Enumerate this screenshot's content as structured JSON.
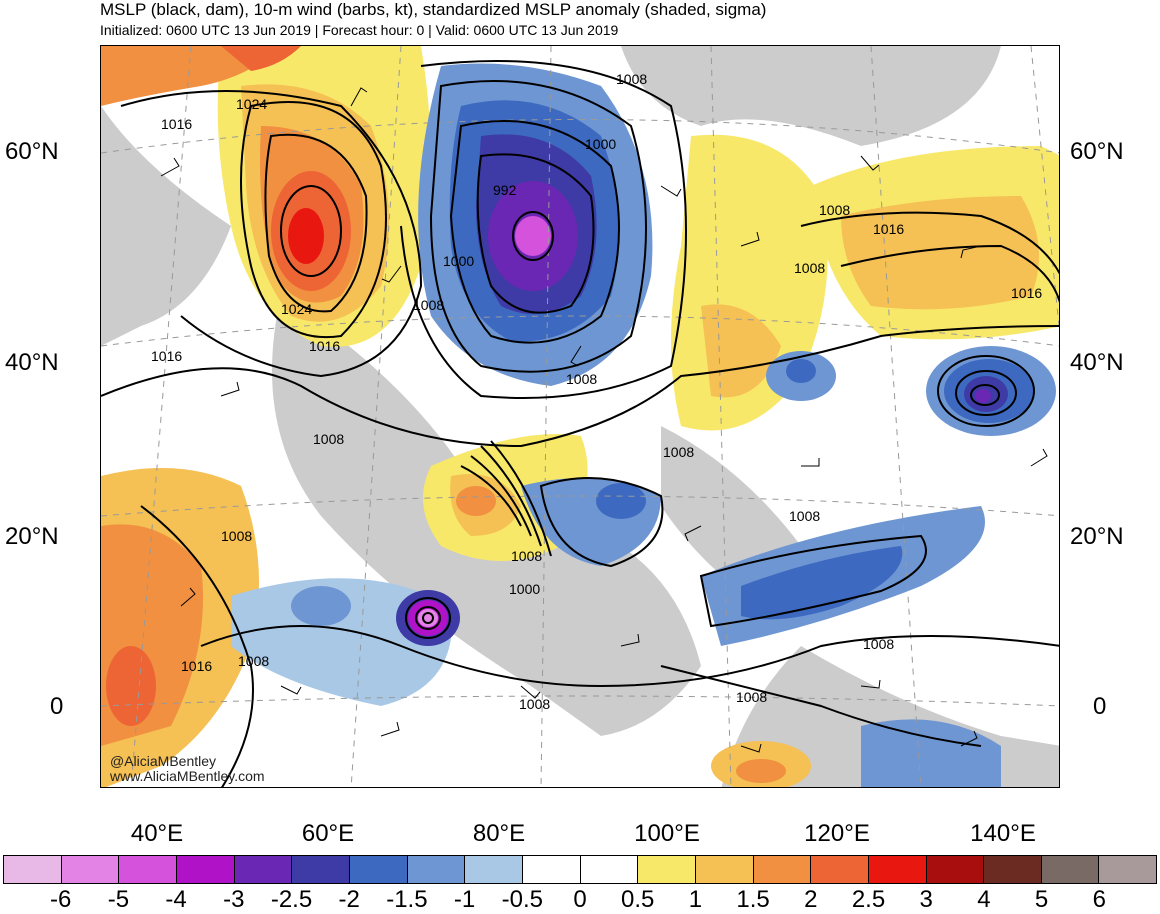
{
  "header": {
    "title": "MSLP (black, dam), 10-m wind (barbs, kt), standardized MSLP anomaly (shaded, sigma)",
    "subtitle": "Initialized: 0600 UTC 13 Jun 2019 | Forecast hour: 0 | Valid: 0600 UTC 13 Jun 2019"
  },
  "map": {
    "latitude_labels": [
      "60°N",
      "40°N",
      "20°N",
      "0"
    ],
    "longitude_labels": [
      "40°E",
      "60°E",
      "80°E",
      "100°E",
      "120°E",
      "140°E"
    ],
    "contour_labels": [
      "1024",
      "1016",
      "1024",
      "1016",
      "1016",
      "992",
      "1000",
      "1000",
      "1008",
      "1008",
      "1008",
      "1016",
      "1016",
      "1008",
      "1008",
      "1008",
      "1008",
      "1008",
      "1000",
      "1008",
      "1016",
      "1008",
      "1008",
      "1008",
      "1008",
      "1008"
    ],
    "features": [
      {
        "name": "ural-high",
        "type": "high",
        "anomaly_sigma": 2.5
      },
      {
        "name": "siberian-low",
        "type": "low",
        "anomaly_sigma": -3.5
      },
      {
        "name": "arabian-sea-cyclone",
        "type": "low",
        "anomaly_sigma": -5
      },
      {
        "name": "japan-low",
        "type": "low",
        "anomaly_sigma": -3
      }
    ]
  },
  "credits": {
    "handle": "@AliciaMBentley",
    "website": "www.AliciaMBentley.com"
  },
  "colorbar": {
    "labels": [
      "-6",
      "-5",
      "-4",
      "-3",
      "-2.5",
      "-2",
      "-1.5",
      "-1",
      "-0.5",
      "0",
      "0.5",
      "1",
      "1.5",
      "2",
      "2.5",
      "3",
      "4",
      "5",
      "6"
    ],
    "colors": [
      "#e8b8e6",
      "#e483e6",
      "#d452dc",
      "#b012c8",
      "#6a27b3",
      "#3e3aa6",
      "#3d6ac0",
      "#6e96d2",
      "#a8c8e6",
      "#ffffff",
      "#ffffff",
      "#f8e86a",
      "#f5c054",
      "#f09040",
      "#ee6535",
      "#e81810",
      "#a80e0e",
      "#6b2a22",
      "#7a6a66",
      "#a89a9a"
    ]
  }
}
